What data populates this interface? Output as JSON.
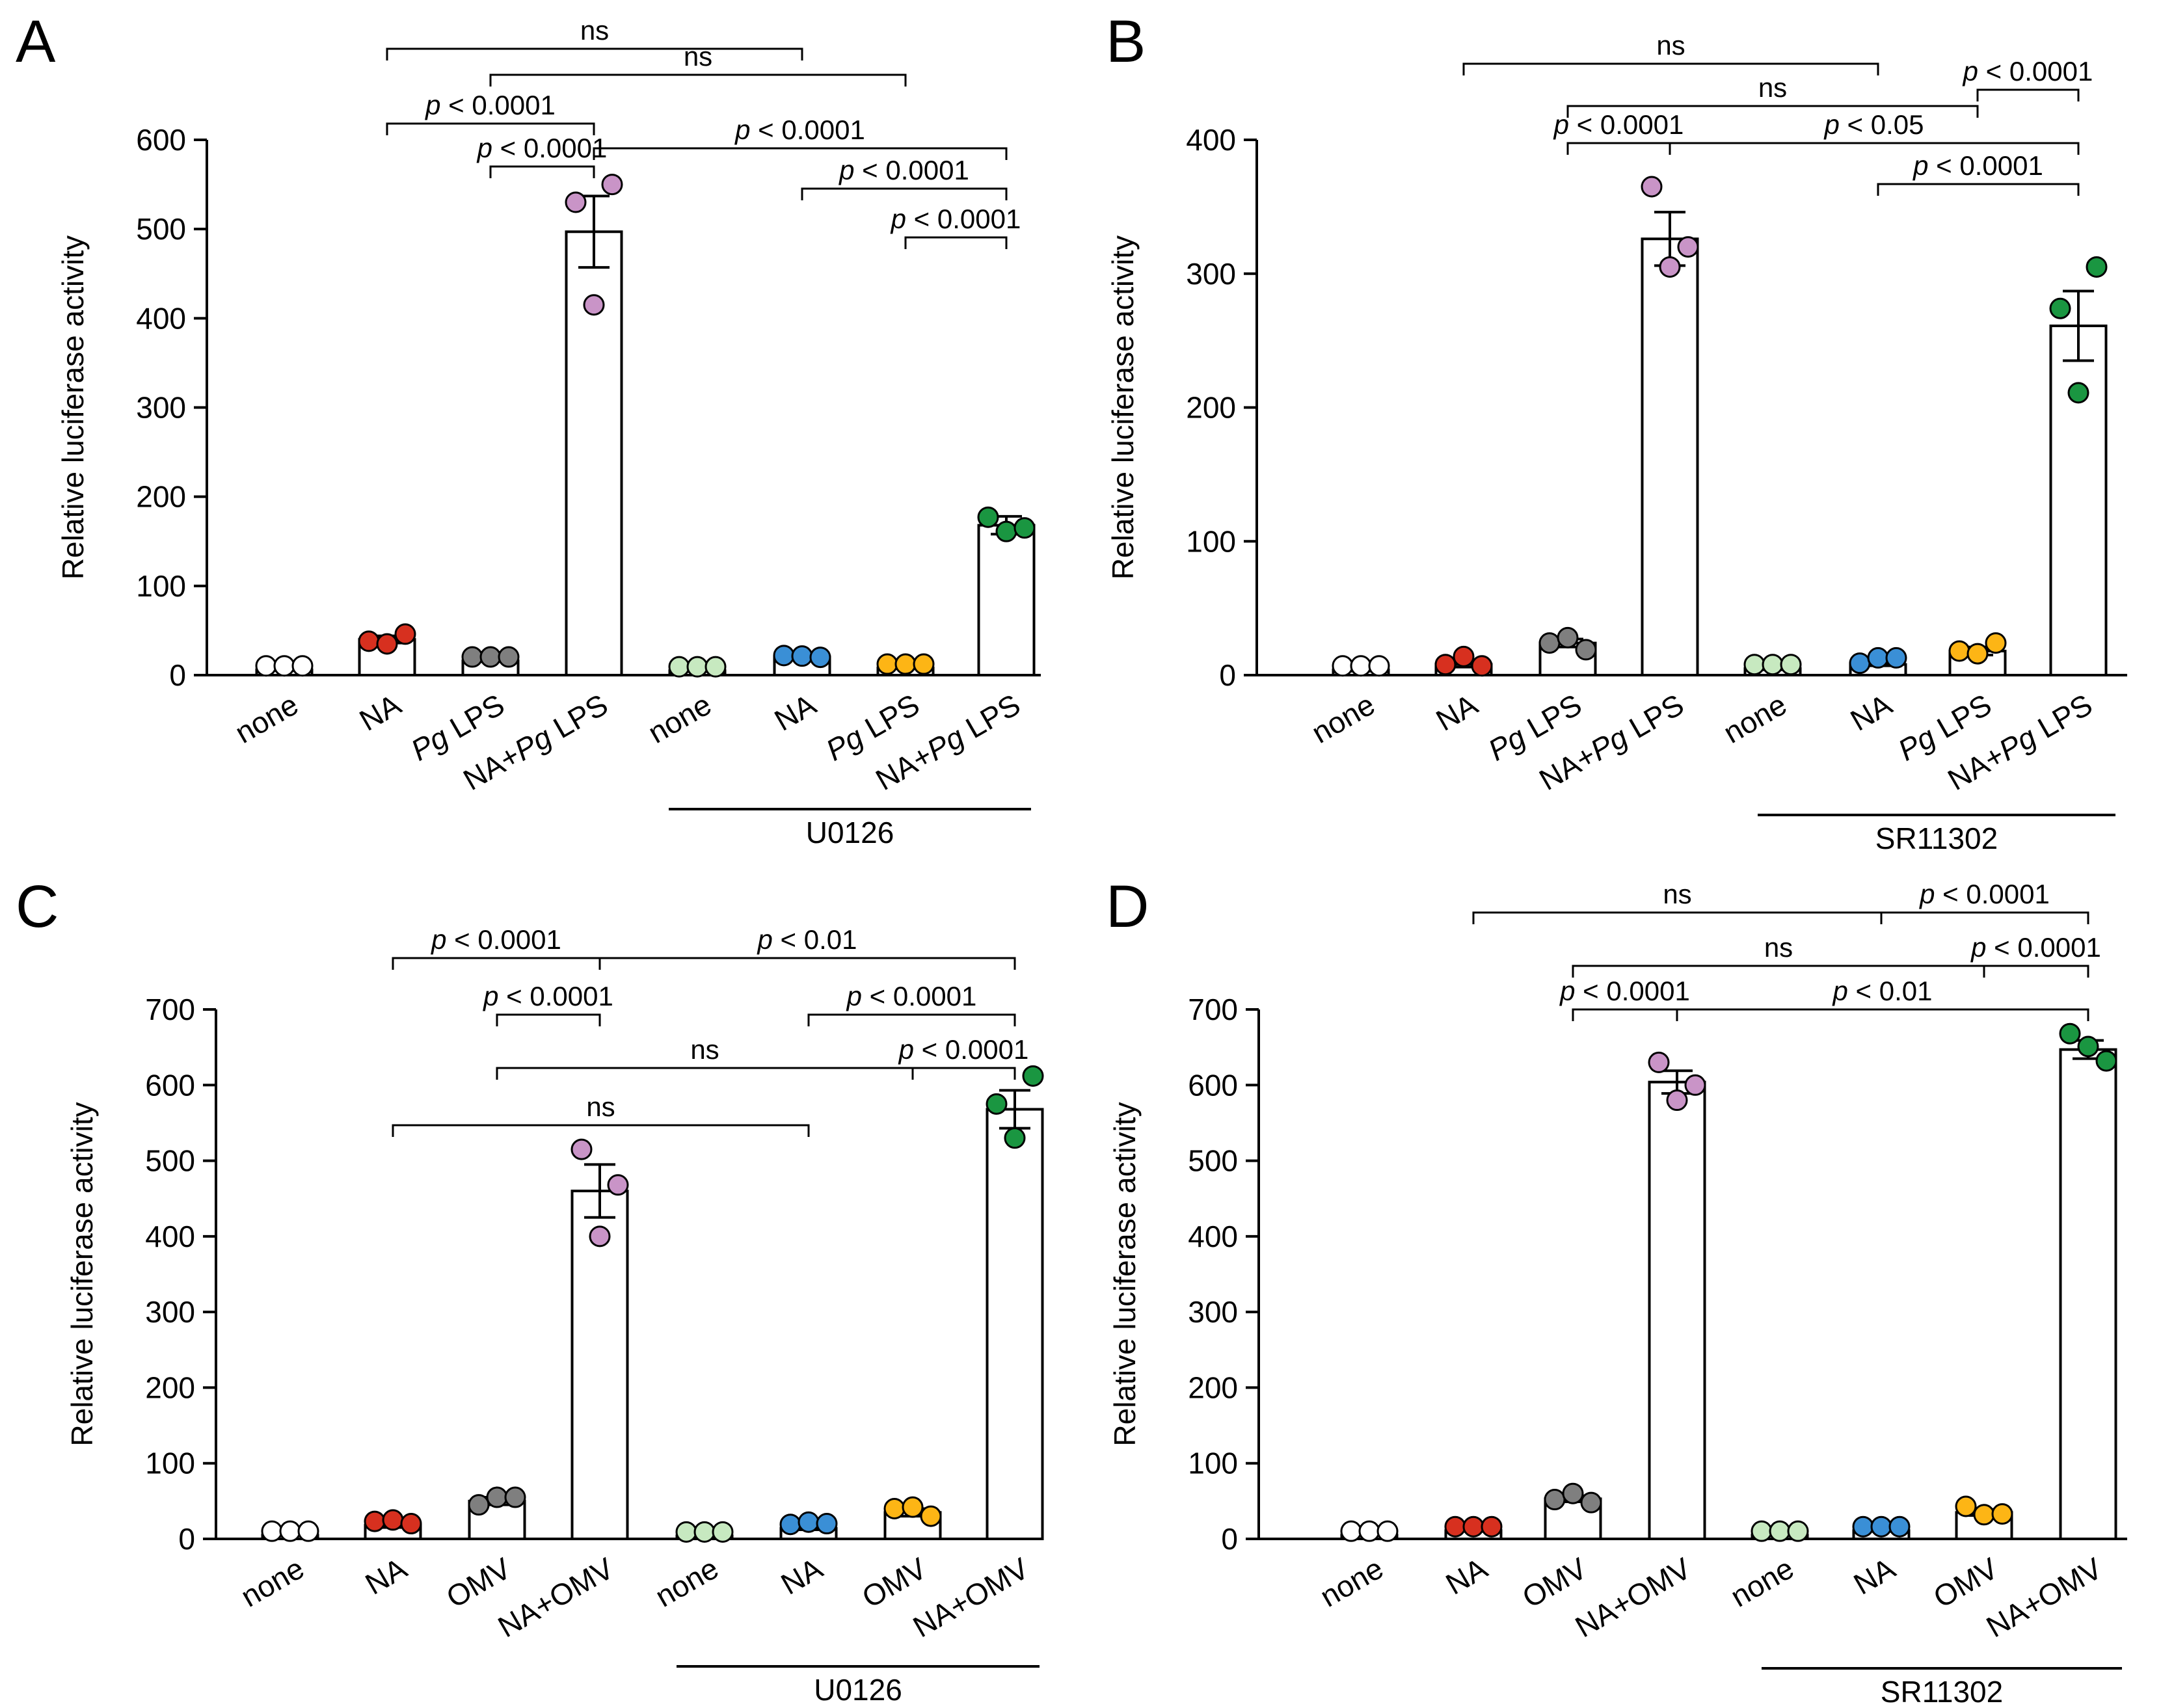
{
  "figure": {
    "title": "Relative luciferase activity panels A-D"
  },
  "colors": {
    "none": "#ffffff",
    "NA": "#d7301f",
    "PgLPS": "#7f7f7f",
    "NA+PgLPS": "#c994c7",
    "OMV": "#7f7f7f",
    "NA+OMV": "#c994c7",
    "none_inh": "#c7e9c0",
    "NA_inh": "#3a8fd6",
    "PgLPS_inh": "#fdb515",
    "NA+PgLPS_inh": "#1a9641",
    "OMV_inh": "#fdb515",
    "NA+OMV_inh": "#1a9641",
    "bar_fill": "#ffffff",
    "axis": "#000000"
  },
  "chart_data": [
    {
      "panel": "A",
      "type": "bar",
      "ylabel": "Relative luciferase activity",
      "ylim": [
        0,
        600
      ],
      "yticks": [
        0,
        100,
        200,
        300,
        400,
        500,
        600
      ],
      "inhibitor": "U0126",
      "categories": [
        {
          "parts": [
            {
              "t": "none",
              "i": false
            }
          ]
        },
        {
          "parts": [
            {
              "t": "NA",
              "i": false
            }
          ]
        },
        {
          "parts": [
            {
              "t": "Pg",
              "i": true
            },
            {
              "t": " LPS",
              "i": false
            }
          ]
        },
        {
          "parts": [
            {
              "t": "NA+",
              "i": false
            },
            {
              "t": "Pg",
              "i": true
            },
            {
              "t": " LPS",
              "i": false
            }
          ]
        },
        {
          "parts": [
            {
              "t": "none",
              "i": false
            }
          ]
        },
        {
          "parts": [
            {
              "t": "NA",
              "i": false
            }
          ]
        },
        {
          "parts": [
            {
              "t": "Pg",
              "i": true
            },
            {
              "t": " LPS",
              "i": false
            }
          ]
        },
        {
          "parts": [
            {
              "t": "NA+",
              "i": false
            },
            {
              "t": "Pg",
              "i": true
            },
            {
              "t": " LPS",
              "i": false
            }
          ]
        }
      ],
      "means": [
        6,
        40,
        16,
        497,
        5,
        20,
        8,
        168
      ],
      "sem": [
        1,
        4,
        1,
        40,
        1,
        3,
        1,
        10
      ],
      "points": [
        [
          6,
          6,
          6
        ],
        [
          38,
          35,
          46
        ],
        [
          16,
          16,
          16
        ],
        [
          530,
          415,
          550
        ],
        [
          5,
          5,
          5
        ],
        [
          22,
          17,
          20
        ],
        [
          8,
          8,
          8
        ],
        [
          177,
          161,
          165
        ]
      ],
      "dot_colors": [
        "none",
        "NA",
        "PgLPS",
        "NA+PgLPS",
        "none_inh",
        "NA_inh",
        "PgLPS_inh",
        "NA+PgLPS_inh"
      ],
      "comparisons": [
        {
          "a": 1,
          "b": 5,
          "label": "ns"
        },
        {
          "a": 2,
          "b": 6,
          "label": "ns"
        },
        {
          "a": 1,
          "b": 3,
          "label": "p < 0.0001"
        },
        {
          "a": 3,
          "b": 7,
          "label": "p < 0.0001"
        },
        {
          "a": 2,
          "b": 3,
          "label": "p < 0.0001"
        },
        {
          "a": 5,
          "b": 7,
          "label": "p < 0.0001"
        },
        {
          "a": 6,
          "b": 7,
          "label": "p < 0.0001"
        }
      ]
    },
    {
      "panel": "B",
      "type": "bar",
      "ylabel": "Relative luciferase activity",
      "ylim": [
        0,
        400
      ],
      "yticks": [
        0,
        100,
        200,
        300,
        400
      ],
      "inhibitor": "SR11302",
      "categories": [
        {
          "parts": [
            {
              "t": "none",
              "i": false
            }
          ]
        },
        {
          "parts": [
            {
              "t": "NA",
              "i": false
            }
          ]
        },
        {
          "parts": [
            {
              "t": "Pg",
              "i": true
            },
            {
              "t": " LPS",
              "i": false
            }
          ]
        },
        {
          "parts": [
            {
              "t": "NA+",
              "i": false
            },
            {
              "t": "Pg",
              "i": true
            },
            {
              "t": " LPS",
              "i": false
            }
          ]
        },
        {
          "parts": [
            {
              "t": "none",
              "i": false
            }
          ]
        },
        {
          "parts": [
            {
              "t": "NA",
              "i": false
            }
          ]
        },
        {
          "parts": [
            {
              "t": "Pg",
              "i": true
            },
            {
              "t": " LPS",
              "i": false
            }
          ]
        },
        {
          "parts": [
            {
              "t": "NA+",
              "i": false
            },
            {
              "t": "Pg",
              "i": true
            },
            {
              "t": " LPS",
              "i": false
            }
          ]
        }
      ],
      "means": [
        4,
        8,
        24,
        326,
        5,
        8,
        18,
        261
      ],
      "sem": [
        1,
        2,
        3,
        20,
        1,
        1,
        3,
        26
      ],
      "points": [
        [
          4,
          4,
          4
        ],
        [
          5,
          11,
          4
        ],
        [
          24,
          28,
          19
        ],
        [
          365,
          305,
          320
        ],
        [
          5,
          5,
          5
        ],
        [
          6,
          10,
          10
        ],
        [
          18,
          16,
          24
        ],
        [
          274,
          211,
          305
        ]
      ],
      "dot_colors": [
        "none",
        "NA",
        "PgLPS",
        "NA+PgLPS",
        "none_inh",
        "NA_inh",
        "PgLPS_inh",
        "NA+PgLPS_inh"
      ],
      "comparisons": [
        {
          "a": 1,
          "b": 5,
          "label": "ns"
        },
        {
          "a": 2,
          "b": 6,
          "label": "ns"
        },
        {
          "a": 6,
          "b": 7,
          "label": "p < 0.0001"
        },
        {
          "a": 2,
          "b": 3,
          "label": "p < 0.0001"
        },
        {
          "a": 3,
          "b": 7,
          "label": "p < 0.05"
        },
        {
          "a": 5,
          "b": 7,
          "label": "p < 0.0001"
        }
      ]
    },
    {
      "panel": "C",
      "type": "bar",
      "ylabel": "Relative luciferase activity",
      "ylim": [
        0,
        700
      ],
      "yticks": [
        0,
        100,
        200,
        300,
        400,
        500,
        600,
        700
      ],
      "inhibitor": "U0126",
      "categories": [
        {
          "parts": [
            {
              "t": "none",
              "i": false
            }
          ]
        },
        {
          "parts": [
            {
              "t": "NA",
              "i": false
            }
          ]
        },
        {
          "parts": [
            {
              "t": "OMV",
              "i": false
            }
          ]
        },
        {
          "parts": [
            {
              "t": "NA+OMV",
              "i": false
            }
          ]
        },
        {
          "parts": [
            {
              "t": "none",
              "i": false
            }
          ]
        },
        {
          "parts": [
            {
              "t": "NA",
              "i": false
            }
          ]
        },
        {
          "parts": [
            {
              "t": "OMV",
              "i": false
            }
          ]
        },
        {
          "parts": [
            {
              "t": "NA+OMV",
              "i": false
            }
          ]
        }
      ],
      "means": [
        5,
        18,
        50,
        460,
        4,
        14,
        35,
        568
      ],
      "sem": [
        1,
        3,
        5,
        35,
        1,
        2,
        5,
        25
      ],
      "points": [
        [
          5,
          5,
          5
        ],
        [
          18,
          25,
          15
        ],
        [
          45,
          55,
          55
        ],
        [
          515,
          400,
          468
        ],
        [
          4,
          4,
          4
        ],
        [
          14,
          17,
          15
        ],
        [
          40,
          42,
          30
        ],
        [
          575,
          530,
          612
        ]
      ],
      "dot_colors": [
        "none",
        "NA",
        "OMV",
        "NA+OMV",
        "none_inh",
        "NA_inh",
        "OMV_inh",
        "NA+OMV_inh"
      ],
      "comparisons": [
        {
          "a": 1,
          "b": 3,
          "label": "p < 0.0001"
        },
        {
          "a": 3,
          "b": 7,
          "label": "p < 0.01"
        },
        {
          "a": 2,
          "b": 3,
          "label": "p < 0.0001"
        },
        {
          "a": 5,
          "b": 7,
          "label": "p < 0.0001"
        },
        {
          "a": 2,
          "b": 6,
          "label": "ns"
        },
        {
          "a": 6,
          "b": 7,
          "label": "p < 0.0001"
        },
        {
          "a": 1,
          "b": 5,
          "label": "ns"
        }
      ]
    },
    {
      "panel": "D",
      "type": "bar",
      "ylabel": "Relative luciferase activity",
      "ylim": [
        0,
        700
      ],
      "yticks": [
        0,
        100,
        200,
        300,
        400,
        500,
        600,
        700
      ],
      "inhibitor": "SR11302",
      "categories": [
        {
          "parts": [
            {
              "t": "none",
              "i": false
            }
          ]
        },
        {
          "parts": [
            {
              "t": "NA",
              "i": false
            }
          ]
        },
        {
          "parts": [
            {
              "t": "OMV",
              "i": false
            }
          ]
        },
        {
          "parts": [
            {
              "t": "NA+OMV",
              "i": false
            }
          ]
        },
        {
          "parts": [
            {
              "t": "none",
              "i": false
            }
          ]
        },
        {
          "parts": [
            {
              "t": "NA",
              "i": false
            }
          ]
        },
        {
          "parts": [
            {
              "t": "OMV",
              "i": false
            }
          ]
        },
        {
          "parts": [
            {
              "t": "NA+OMV",
              "i": false
            }
          ]
        }
      ],
      "means": [
        5,
        11,
        53,
        604,
        5,
        11,
        35,
        647
      ],
      "sem": [
        1,
        1,
        4,
        15,
        1,
        1,
        4,
        12
      ],
      "points": [
        [
          5,
          5,
          5
        ],
        [
          11,
          11,
          11
        ],
        [
          52,
          60,
          48
        ],
        [
          630,
          580,
          600
        ],
        [
          5,
          5,
          5
        ],
        [
          11,
          11,
          11
        ],
        [
          43,
          32,
          33
        ],
        [
          668,
          651,
          632
        ]
      ],
      "dot_colors": [
        "none",
        "NA",
        "OMV",
        "NA+OMV",
        "none_inh",
        "NA_inh",
        "OMV_inh",
        "NA+OMV_inh"
      ],
      "comparisons": [
        {
          "a": 1,
          "b": 5,
          "label": "ns"
        },
        {
          "a": 5,
          "b": 7,
          "label": "p < 0.0001"
        },
        {
          "a": 2,
          "b": 6,
          "label": "ns"
        },
        {
          "a": 6,
          "b": 7,
          "label": "p < 0.0001"
        },
        {
          "a": 2,
          "b": 3,
          "label": "p < 0.0001"
        },
        {
          "a": 3,
          "b": 7,
          "label": "p < 0.01"
        }
      ]
    }
  ]
}
